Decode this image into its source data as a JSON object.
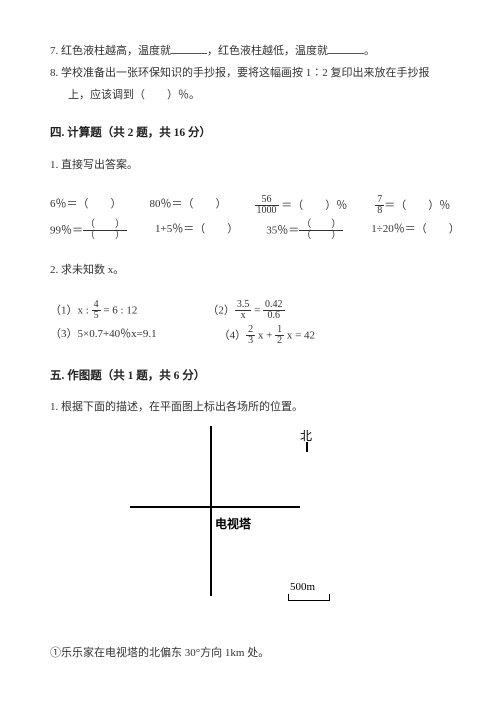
{
  "q7": {
    "num": "7.",
    "t1": "红色液柱越高，温度就",
    "t2": "，红色液柱越低，温度就",
    "t3": "。"
  },
  "q8": {
    "num": "8.",
    "t1": "学校准备出一张环保知识的手抄报，要将这幅画按 1∶2 复印出来放在手抄报",
    "t2": "上，应该调到（　　）％。"
  },
  "sec4": "四. 计算题（共 2 题，共 16 分）",
  "s4q1": "1. 直接写出答案。",
  "r1": {
    "c1a": "6％＝（　　）",
    "c2a": "80％＝（　　）",
    "c3_n": "56",
    "c3_d": "1000",
    "c3_tail": " ＝（　　）％",
    "c4_n": "7",
    "c4_d": "8",
    "c4_tail": "＝（　　）％"
  },
  "r2": {
    "c1a": "99％＝",
    "pn1": "（　　）",
    "pd1": "（　　）",
    "c2a": "1+5％＝（　　）",
    "c3a": "35％＝",
    "pn3": "（　　）",
    "pd3": "（　　）",
    "c4a": "1÷20％＝（　　）"
  },
  "s4q2": "2. 求未知数 x。",
  "eq1": {
    "lead": "（1）x : ",
    "fn": "4",
    "fd": "5",
    "tail": " = 6 : 12"
  },
  "eq2": {
    "lead": "（2）",
    "f1n": "3.5",
    "f1d": "x",
    "mid": " = ",
    "f2n": "0.42",
    "f2d": "0.6"
  },
  "eq3": "（3）5×0.7+40％x=9.1",
  "eq4": {
    "lead": "（4）",
    "f1n": "2",
    "f1d": "3",
    "mid1": " x + ",
    "f2n": "1",
    "f2d": "2",
    "tail": " x = 42"
  },
  "sec5": "五. 作图题（共 1 题，共 6 分）",
  "s5q1": "1. 根据下面的描述，在平面图上标出各场所的位置。",
  "dia": {
    "north": "北",
    "tower": "电视塔",
    "scale": "500m"
  },
  "s5item1": "①乐乐家在电视塔的北偏东 30°方向 1km 处。",
  "colors": {
    "text": "#333333",
    "bg": "#ffffff",
    "black": "#000000"
  }
}
